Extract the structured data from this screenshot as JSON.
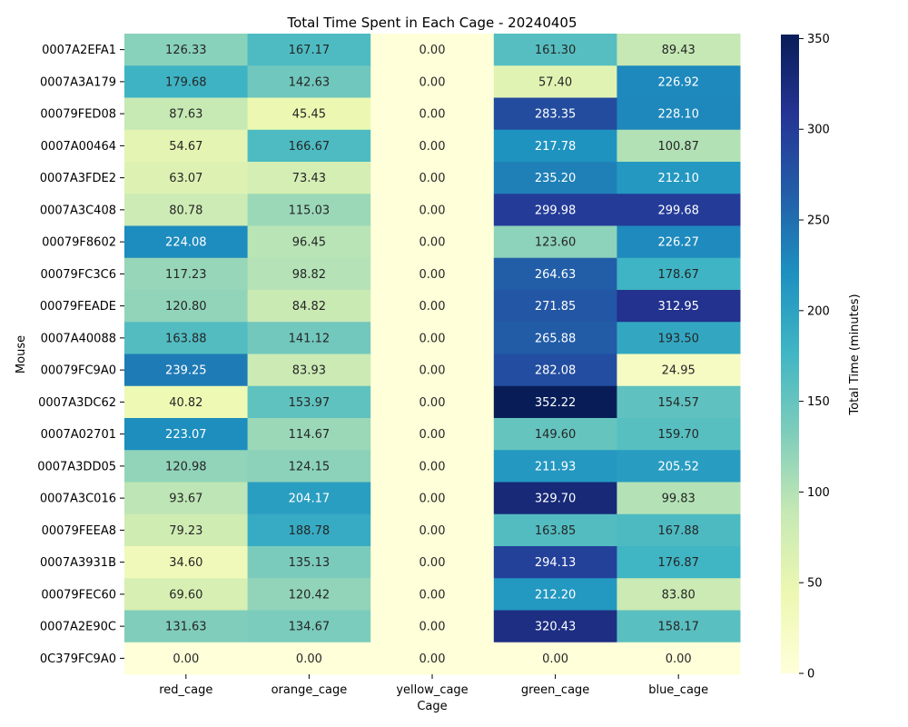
{
  "chart_data": {
    "type": "heatmap",
    "title": "Total Time Spent in Each Cage - 20240405",
    "xlabel": "Cage",
    "ylabel": "Mouse",
    "x_categories": [
      "red_cage",
      "orange_cage",
      "yellow_cage",
      "green_cage",
      "blue_cage"
    ],
    "y_categories": [
      "0007A2EFA1",
      "0007A3A179",
      "00079FED08",
      "0007A00464",
      "0007A3FDE2",
      "0007A3C408",
      "00079F8602",
      "00079FC3C6",
      "00079FEADE",
      "0007A40088",
      "00079FC9A0",
      "0007A3DC62",
      "0007A02701",
      "0007A3DD05",
      "0007A3C016",
      "00079FEEA8",
      "0007A3931B",
      "00079FEC60",
      "0007A2E90C",
      "0C379FC9A0"
    ],
    "values": [
      [
        126.33,
        167.17,
        0.0,
        161.3,
        89.43
      ],
      [
        179.68,
        142.63,
        0.0,
        57.4,
        226.92
      ],
      [
        87.63,
        45.45,
        0.0,
        283.35,
        228.1
      ],
      [
        54.67,
        166.67,
        0.0,
        217.78,
        100.87
      ],
      [
        63.07,
        73.43,
        0.0,
        235.2,
        212.1
      ],
      [
        80.78,
        115.03,
        0.0,
        299.98,
        299.68
      ],
      [
        224.08,
        96.45,
        0.0,
        123.6,
        226.27
      ],
      [
        117.23,
        98.82,
        0.0,
        264.63,
        178.67
      ],
      [
        120.8,
        84.82,
        0.0,
        271.85,
        312.95
      ],
      [
        163.88,
        141.12,
        0.0,
        265.88,
        193.5
      ],
      [
        239.25,
        83.93,
        0.0,
        282.08,
        24.95
      ],
      [
        40.82,
        153.97,
        0.0,
        352.22,
        154.57
      ],
      [
        223.07,
        114.67,
        0.0,
        149.6,
        159.7
      ],
      [
        120.98,
        124.15,
        0.0,
        211.93,
        205.52
      ],
      [
        93.67,
        204.17,
        0.0,
        329.7,
        99.83
      ],
      [
        79.23,
        188.78,
        0.0,
        163.85,
        167.88
      ],
      [
        34.6,
        135.13,
        0.0,
        294.13,
        176.87
      ],
      [
        69.6,
        120.42,
        0.0,
        212.2,
        83.8
      ],
      [
        131.63,
        134.67,
        0.0,
        320.43,
        158.17
      ],
      [
        0.0,
        0.0,
        0.0,
        0.0,
        0.0
      ]
    ],
    "value_format": "2 decimals",
    "colormap": "YlGnBu",
    "colorbar": {
      "label": "Total Time (minutes)",
      "ticks": [
        0,
        50,
        100,
        150,
        200,
        250,
        300,
        350
      ],
      "range": [
        0,
        352.22
      ]
    }
  }
}
